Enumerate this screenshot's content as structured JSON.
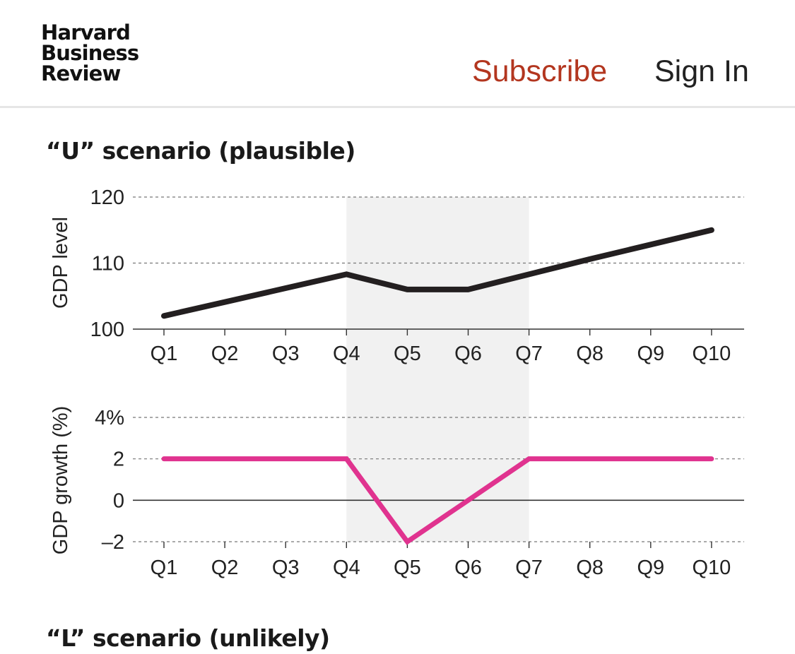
{
  "header": {
    "logo_lines": [
      "Harvard",
      "Business",
      "Review"
    ],
    "subscribe_label": "Subscribe",
    "signin_label": "Sign In",
    "subscribe_color": "#b3361f"
  },
  "chart_data": {
    "type": "line",
    "title": "“U” scenario (plausible)",
    "categories": [
      "Q1",
      "Q2",
      "Q3",
      "Q4",
      "Q5",
      "Q6",
      "Q7",
      "Q8",
      "Q9",
      "Q10"
    ],
    "shaded_range": [
      "Q4",
      "Q7"
    ],
    "panels": [
      {
        "ylabel": "GDP level",
        "yticks": [
          100,
          110,
          120
        ],
        "ytick_labels": [
          "100",
          "110",
          "120"
        ],
        "ylim": [
          100,
          120
        ],
        "grid": "dashed",
        "series": [
          {
            "values": [
              102,
              104.1,
              106.2,
              108.3,
              106,
              106,
              108.3,
              110.6,
              112.8,
              115
            ],
            "color": "#231f20"
          }
        ]
      },
      {
        "ylabel": "GDP growth (%)",
        "yticks": [
          -2,
          0,
          2,
          4
        ],
        "ytick_labels": [
          "–2",
          "0",
          "2",
          "4%"
        ],
        "ylim": [
          -2,
          4
        ],
        "grid": "dashed",
        "series": [
          {
            "values": [
              2,
              2,
              2,
              2,
              -2,
              0,
              2,
              2,
              2,
              2
            ],
            "color": "#e0338f"
          }
        ]
      }
    ]
  },
  "next_chart": {
    "title": "“L” scenario (unlikely)"
  }
}
